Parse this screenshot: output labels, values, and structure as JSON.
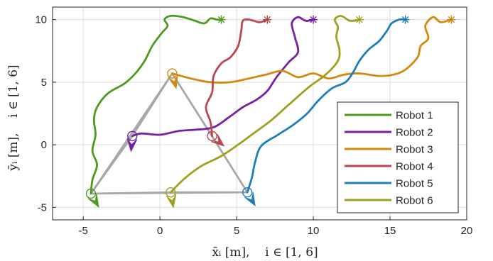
{
  "chart_data": {
    "type": "line",
    "title": "",
    "xlabel": "x̄ᵢ [m],    i ∈ [1, 6]",
    "ylabel": "ȳᵢ [m],    i ∈ [1, 6]",
    "xlim": [
      -7,
      20
    ],
    "ylim": [
      -6,
      11
    ],
    "xticks": [
      "-5",
      "0",
      "5",
      "10",
      "15",
      "20"
    ],
    "yticks": [
      "-5",
      "0",
      "5",
      "10"
    ],
    "xtick_values": [
      -5,
      0,
      5,
      10,
      15,
      20
    ],
    "ytick_values": [
      -5,
      0,
      5,
      10
    ],
    "grid": true,
    "legend_position": "lower-right",
    "formation": {
      "color": "#a8a8a8",
      "triangle": [
        [
          0.8,
          5.7
        ],
        [
          -4.5,
          -3.9
        ],
        [
          5.7,
          -3.8
        ]
      ],
      "inner": [
        [
          -1.8,
          0.7
        ],
        [
          3.4,
          0.7
        ],
        [
          0.7,
          -3.8
        ]
      ]
    },
    "series": [
      {
        "name": "Robot 1",
        "color": "#4d9a1e",
        "start": [
          -4.5,
          -3.9
        ],
        "end": [
          4.0,
          10.0
        ],
        "start_heading": -60,
        "path": [
          [
            -4.5,
            -3.9
          ],
          [
            -4.4,
            -2.8
          ],
          [
            -4.1,
            -1.6
          ],
          [
            -4.4,
            -0.5
          ],
          [
            -4.2,
            0.8
          ],
          [
            -4.3,
            2.0
          ],
          [
            -4.1,
            3.0
          ],
          [
            -3.4,
            4.1
          ],
          [
            -2.3,
            4.9
          ],
          [
            -1.6,
            5.7
          ],
          [
            -1.0,
            6.7
          ],
          [
            -0.5,
            7.9
          ],
          [
            0.1,
            8.9
          ],
          [
            0.5,
            9.5
          ],
          [
            0.3,
            10.0
          ],
          [
            0.7,
            10.3
          ],
          [
            1.5,
            10.2
          ],
          [
            2.3,
            9.9
          ],
          [
            2.9,
            9.7
          ],
          [
            3.3,
            10.1
          ],
          [
            3.7,
            10.0
          ],
          [
            4.0,
            10.0
          ]
        ]
      },
      {
        "name": "Robot 2",
        "color": "#7a1fa2",
        "start": [
          -1.8,
          0.7
        ],
        "end": [
          10.0,
          10.0
        ],
        "start_heading": -95,
        "path": [
          [
            -1.8,
            0.7
          ],
          [
            -1.2,
            0.9
          ],
          [
            0.0,
            0.8
          ],
          [
            1.2,
            1.1
          ],
          [
            2.3,
            1.2
          ],
          [
            3.5,
            1.4
          ],
          [
            4.5,
            2.2
          ],
          [
            5.4,
            3.0
          ],
          [
            6.3,
            3.6
          ],
          [
            7.0,
            4.3
          ],
          [
            7.6,
            5.4
          ],
          [
            8.4,
            6.6
          ],
          [
            9.0,
            7.4
          ],
          [
            8.8,
            8.6
          ],
          [
            8.6,
            9.7
          ],
          [
            9.0,
            10.2
          ],
          [
            9.5,
            9.9
          ],
          [
            10.0,
            10.0
          ]
        ]
      },
      {
        "name": "Robot 3",
        "color": "#d4880e",
        "start": [
          0.8,
          5.7
        ],
        "end": [
          19.0,
          10.0
        ],
        "start_heading": -75,
        "path": [
          [
            0.8,
            5.7
          ],
          [
            2.0,
            5.3
          ],
          [
            3.3,
            5.0
          ],
          [
            4.6,
            5.0
          ],
          [
            5.8,
            5.3
          ],
          [
            6.9,
            5.6
          ],
          [
            8.0,
            5.9
          ],
          [
            9.0,
            5.4
          ],
          [
            10.0,
            5.7
          ],
          [
            11.0,
            5.3
          ],
          [
            12.0,
            5.6
          ],
          [
            13.0,
            5.7
          ],
          [
            14.3,
            5.5
          ],
          [
            15.2,
            5.6
          ],
          [
            16.0,
            6.0
          ],
          [
            16.8,
            7.0
          ],
          [
            17.0,
            7.9
          ],
          [
            17.5,
            8.5
          ],
          [
            17.3,
            9.5
          ],
          [
            17.8,
            10.2
          ],
          [
            18.3,
            9.8
          ],
          [
            19.0,
            10.0
          ]
        ]
      },
      {
        "name": "Robot 4",
        "color": "#b8474f",
        "start": [
          3.4,
          0.7
        ],
        "end": [
          7.0,
          10.0
        ],
        "start_heading": -40,
        "path": [
          [
            3.4,
            0.7
          ],
          [
            3.3,
            1.8
          ],
          [
            3.0,
            3.0
          ],
          [
            3.4,
            4.2
          ],
          [
            3.5,
            5.5
          ],
          [
            4.0,
            6.5
          ],
          [
            4.6,
            7.0
          ],
          [
            5.1,
            7.9
          ],
          [
            5.3,
            9.1
          ],
          [
            5.4,
            9.9
          ],
          [
            5.8,
            10.0
          ],
          [
            6.5,
            9.8
          ],
          [
            7.0,
            10.0
          ]
        ]
      },
      {
        "name": "Robot 5",
        "color": "#1e7eb8",
        "start": [
          5.7,
          -3.8
        ],
        "end": [
          16.0,
          10.0
        ],
        "start_heading": -60,
        "path": [
          [
            5.7,
            -3.8
          ],
          [
            6.0,
            -2.6
          ],
          [
            6.2,
            -1.4
          ],
          [
            6.6,
            -0.1
          ],
          [
            7.7,
            0.8
          ],
          [
            8.7,
            1.6
          ],
          [
            9.6,
            2.5
          ],
          [
            10.3,
            3.5
          ],
          [
            11.2,
            4.5
          ],
          [
            12.1,
            5.0
          ],
          [
            12.6,
            5.8
          ],
          [
            13.0,
            6.7
          ],
          [
            13.6,
            7.6
          ],
          [
            14.3,
            8.3
          ],
          [
            14.8,
            9.1
          ],
          [
            15.1,
            9.7
          ],
          [
            15.6,
            10.0
          ],
          [
            16.0,
            10.0
          ]
        ]
      },
      {
        "name": "Robot 6",
        "color": "#a0a020",
        "start": [
          0.7,
          -3.8
        ],
        "end": [
          13.0,
          10.0
        ],
        "start_heading": -80,
        "path": [
          [
            0.7,
            -3.8
          ],
          [
            1.6,
            -2.7
          ],
          [
            2.7,
            -1.7
          ],
          [
            4.0,
            -0.9
          ],
          [
            5.2,
            0.1
          ],
          [
            6.2,
            1.0
          ],
          [
            7.2,
            1.9
          ],
          [
            8.4,
            3.2
          ],
          [
            9.7,
            4.6
          ],
          [
            10.8,
            5.6
          ],
          [
            11.6,
            6.7
          ],
          [
            11.7,
            7.6
          ],
          [
            11.5,
            8.6
          ],
          [
            11.6,
            9.4
          ],
          [
            11.4,
            10.0
          ],
          [
            11.8,
            10.3
          ],
          [
            12.4,
            9.9
          ],
          [
            13.0,
            10.0
          ]
        ]
      }
    ]
  }
}
